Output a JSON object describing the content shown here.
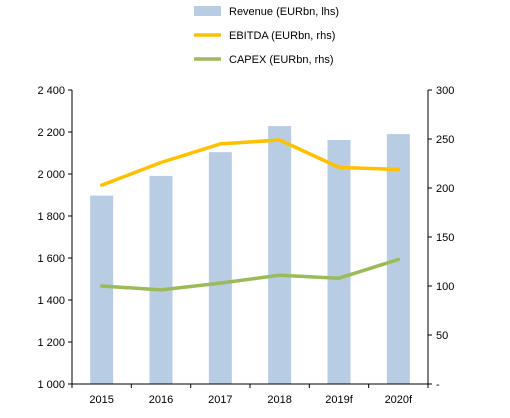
{
  "chart_data": {
    "type": "bar",
    "categories": [
      "2015",
      "2016",
      "2017",
      "2018",
      "2019f",
      "2020f"
    ],
    "series": [
      {
        "name": "Revenue (EURbn, lhs)",
        "kind": "bar",
        "axis": "left",
        "color": "#b8cce4",
        "values": [
          1897,
          1991,
          2104,
          2228,
          2162,
          2190
        ]
      },
      {
        "name": "EBITDA (EURbn, rhs)",
        "kind": "line",
        "axis": "right",
        "color": "#ffc000",
        "values": [
          203,
          226,
          245,
          249,
          221,
          219
        ]
      },
      {
        "name": "CAPEX (EURbn, rhs)",
        "kind": "line",
        "axis": "right",
        "color": "#9bbb59",
        "values": [
          100,
          96,
          103,
          111,
          108,
          127
        ]
      }
    ],
    "y_left": {
      "min": 1000,
      "max": 2400,
      "ticks": [
        1000,
        1200,
        1400,
        1600,
        1800,
        2000,
        2200,
        2400
      ],
      "tick_labels": [
        "1 000",
        "1 200",
        "1 400",
        "1 600",
        "1 800",
        "2 000",
        "2 200",
        "2 400"
      ]
    },
    "y_right": {
      "min": 0,
      "max": 300,
      "ticks": [
        0,
        50,
        100,
        150,
        200,
        250,
        300
      ],
      "tick_labels": [
        "-",
        "50",
        "100",
        "150",
        "200",
        "250",
        "300"
      ]
    },
    "legend_position": "top-center",
    "grid": false
  }
}
